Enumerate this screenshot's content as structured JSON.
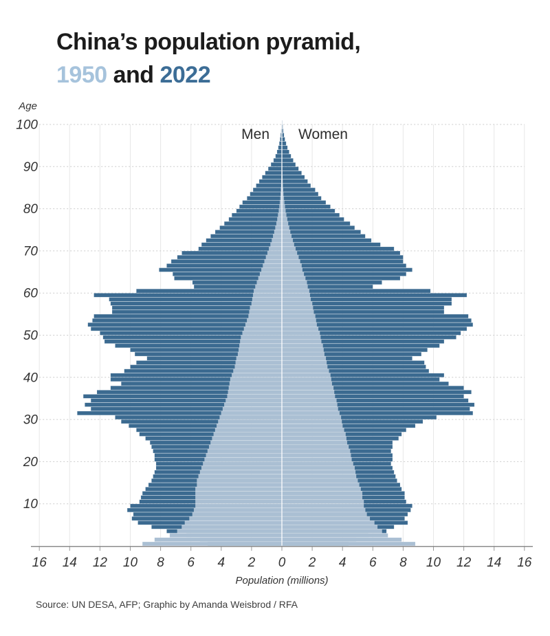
{
  "title": {
    "line1": "China’s population pyramid,",
    "year_1950": "1950",
    "and_word": " and ",
    "year_2022": "2022"
  },
  "labels": {
    "age_axis": "Age",
    "men": "Men",
    "women": "Women",
    "x_axis": "Population (millions)"
  },
  "source": "Source: UN DESA, AFP; Graphic by Amanda Weisbrod / RFA",
  "colors": {
    "bars_2022": "#3B6A90",
    "bars_1950": "#AABFD3",
    "title_1950": "#A6C3DC",
    "title_2022": "#3C6D96",
    "grid_horizontal": "#CBCBCB",
    "grid_vertical": "#E7E7E7",
    "axis_line": "#8C8C8C",
    "tick_mark": "#999999",
    "tick_text": "#333333",
    "center_divider": "#FFFFFF"
  },
  "chart_data": {
    "type": "bar",
    "subtype": "population-pyramid-paired-horizontal-bars",
    "unit": "millions of people per single year of age",
    "age_min": 0,
    "age_max": 100,
    "x_axis": {
      "label": "Population (millions)",
      "tick_labels": [
        "16",
        "14",
        "12",
        "10",
        "8",
        "6",
        "4",
        "2",
        "0",
        "2",
        "4",
        "6",
        "8",
        "10",
        "12",
        "14",
        "16"
      ],
      "tick_step_millions": 2,
      "max_millions": 16
    },
    "y_axis": {
      "label": "Age",
      "tick_labels": [
        "10",
        "20",
        "30",
        "40",
        "50",
        "60",
        "70",
        "80",
        "90",
        "100"
      ],
      "tick_step_years": 10
    },
    "legend": {
      "men_side": "left",
      "women_side": "right"
    },
    "series": [
      {
        "name": "2022 Men",
        "year": 2022,
        "sex": "men",
        "side": "left",
        "color": "#3B6A90",
        "values_by_age": [
          4.9,
          5.4,
          6.3,
          7.6,
          8.6,
          9.5,
          9.9,
          9.8,
          10.2,
          10.0,
          9.4,
          9.3,
          9.2,
          9.0,
          8.8,
          8.6,
          8.5,
          8.4,
          8.3,
          8.3,
          8.4,
          8.4,
          8.5,
          8.6,
          8.7,
          9.0,
          9.4,
          9.6,
          10.1,
          10.6,
          11.0,
          13.5,
          12.6,
          13.0,
          12.6,
          13.1,
          12.2,
          11.3,
          10.6,
          11.3,
          11.3,
          10.4,
          10.0,
          9.6,
          8.9,
          9.7,
          10.0,
          11.0,
          11.7,
          11.8,
          12.0,
          12.6,
          12.8,
          12.5,
          12.4,
          11.2,
          11.2,
          11.3,
          11.4,
          12.4,
          9.6,
          5.8,
          5.9,
          7.1,
          7.2,
          8.1,
          7.6,
          7.3,
          6.9,
          6.6,
          5.5,
          5.3,
          5.0,
          4.7,
          4.4,
          4.1,
          3.8,
          3.5,
          3.3,
          3.0,
          2.8,
          2.6,
          2.3,
          2.1,
          1.9,
          1.7,
          1.5,
          1.3,
          1.1,
          0.9,
          0.72,
          0.55,
          0.42,
          0.32,
          0.24,
          0.17,
          0.12,
          0.08,
          0.05,
          0.03,
          0.02
        ]
      },
      {
        "name": "2022 Women",
        "year": 2022,
        "sex": "women",
        "side": "right",
        "color": "#3B6A90",
        "values_by_age": [
          4.4,
          4.9,
          5.7,
          6.9,
          7.4,
          8.3,
          8.1,
          8.3,
          8.5,
          8.6,
          8.2,
          8.1,
          8.1,
          7.9,
          7.8,
          7.6,
          7.5,
          7.4,
          7.3,
          7.2,
          7.3,
          7.3,
          7.2,
          7.3,
          7.3,
          7.7,
          7.9,
          8.2,
          8.8,
          9.3,
          10.2,
          12.6,
          12.4,
          12.7,
          12.3,
          12.0,
          12.5,
          12.0,
          11.0,
          10.4,
          10.7,
          9.7,
          9.5,
          9.4,
          8.6,
          9.2,
          9.6,
          10.4,
          10.7,
          11.5,
          11.8,
          12.2,
          12.6,
          12.5,
          12.3,
          10.7,
          10.7,
          11.2,
          11.2,
          12.2,
          9.8,
          6.0,
          6.6,
          7.8,
          8.2,
          8.6,
          8.2,
          8.0,
          8.0,
          7.8,
          7.4,
          6.5,
          5.9,
          5.5,
          5.2,
          4.8,
          4.5,
          4.1,
          3.8,
          3.5,
          3.2,
          2.9,
          2.6,
          2.4,
          2.2,
          1.9,
          1.7,
          1.5,
          1.3,
          1.1,
          0.9,
          0.75,
          0.6,
          0.48,
          0.37,
          0.28,
          0.2,
          0.14,
          0.09,
          0.06,
          0.04
        ]
      },
      {
        "name": "1950 Men",
        "year": 1950,
        "sex": "men",
        "side": "left",
        "color": "#AABFD3",
        "values_by_age": [
          9.2,
          8.4,
          7.4,
          6.9,
          6.6,
          6.4,
          6.1,
          5.9,
          5.8,
          5.7,
          5.7,
          5.7,
          5.7,
          5.7,
          5.6,
          5.6,
          5.5,
          5.4,
          5.3,
          5.2,
          5.1,
          5.0,
          4.9,
          4.8,
          4.7,
          4.6,
          4.5,
          4.4,
          4.3,
          4.2,
          4.1,
          4.0,
          3.9,
          3.8,
          3.7,
          3.6,
          3.55,
          3.5,
          3.45,
          3.4,
          3.3,
          3.2,
          3.1,
          3.05,
          3.0,
          2.9,
          2.85,
          2.8,
          2.75,
          2.7,
          2.6,
          2.5,
          2.4,
          2.3,
          2.2,
          2.15,
          2.1,
          2.0,
          1.95,
          1.9,
          1.85,
          1.75,
          1.65,
          1.55,
          1.45,
          1.35,
          1.25,
          1.15,
          1.05,
          0.95,
          0.85,
          0.75,
          0.66,
          0.58,
          0.5,
          0.43,
          0.36,
          0.3,
          0.25,
          0.2,
          0.16,
          0.13,
          0.1,
          0.08,
          0.06,
          0.045,
          0.035,
          0.025,
          0.02,
          0.015,
          0.01,
          0.008,
          0.006,
          0.004,
          0.003,
          0.002,
          0.002,
          0.001,
          0.001,
          0.001,
          0.001
        ]
      },
      {
        "name": "1950 Women",
        "year": 1950,
        "sex": "women",
        "side": "right",
        "color": "#AABFD3",
        "values_by_age": [
          8.8,
          7.9,
          7.0,
          6.6,
          6.3,
          6.1,
          5.8,
          5.6,
          5.5,
          5.4,
          5.4,
          5.3,
          5.3,
          5.2,
          5.1,
          5.0,
          4.9,
          4.85,
          4.8,
          4.7,
          4.6,
          4.55,
          4.5,
          4.4,
          4.3,
          4.25,
          4.2,
          4.1,
          4.0,
          3.95,
          3.9,
          3.8,
          3.7,
          3.65,
          3.6,
          3.5,
          3.45,
          3.4,
          3.3,
          3.25,
          3.2,
          3.1,
          3.0,
          2.95,
          2.9,
          2.8,
          2.75,
          2.7,
          2.6,
          2.55,
          2.5,
          2.4,
          2.3,
          2.25,
          2.2,
          2.1,
          2.05,
          2.0,
          1.9,
          1.85,
          1.8,
          1.7,
          1.65,
          1.55,
          1.45,
          1.35,
          1.3,
          1.2,
          1.1,
          1.0,
          0.9,
          0.8,
          0.72,
          0.63,
          0.55,
          0.48,
          0.41,
          0.35,
          0.29,
          0.24,
          0.2,
          0.16,
          0.13,
          0.1,
          0.08,
          0.06,
          0.05,
          0.04,
          0.03,
          0.02,
          0.015,
          0.012,
          0.009,
          0.007,
          0.005,
          0.004,
          0.003,
          0.002,
          0.002,
          0.001,
          0.001
        ]
      }
    ],
    "annotations": [
      "Men",
      "Women"
    ],
    "grid": {
      "horizontal": "dashed, every 10 years",
      "vertical": "solid light, every 2 millions"
    },
    "notable_features": [
      "1961 famine birth-deficit notch at ages ~60-63",
      "peaks at ages ~31-35 and ~50-54 in 2022",
      "shrinking base (ages 0-4) in 2022",
      "smooth classic pyramid for 1950 overlaid in light blue"
    ]
  }
}
